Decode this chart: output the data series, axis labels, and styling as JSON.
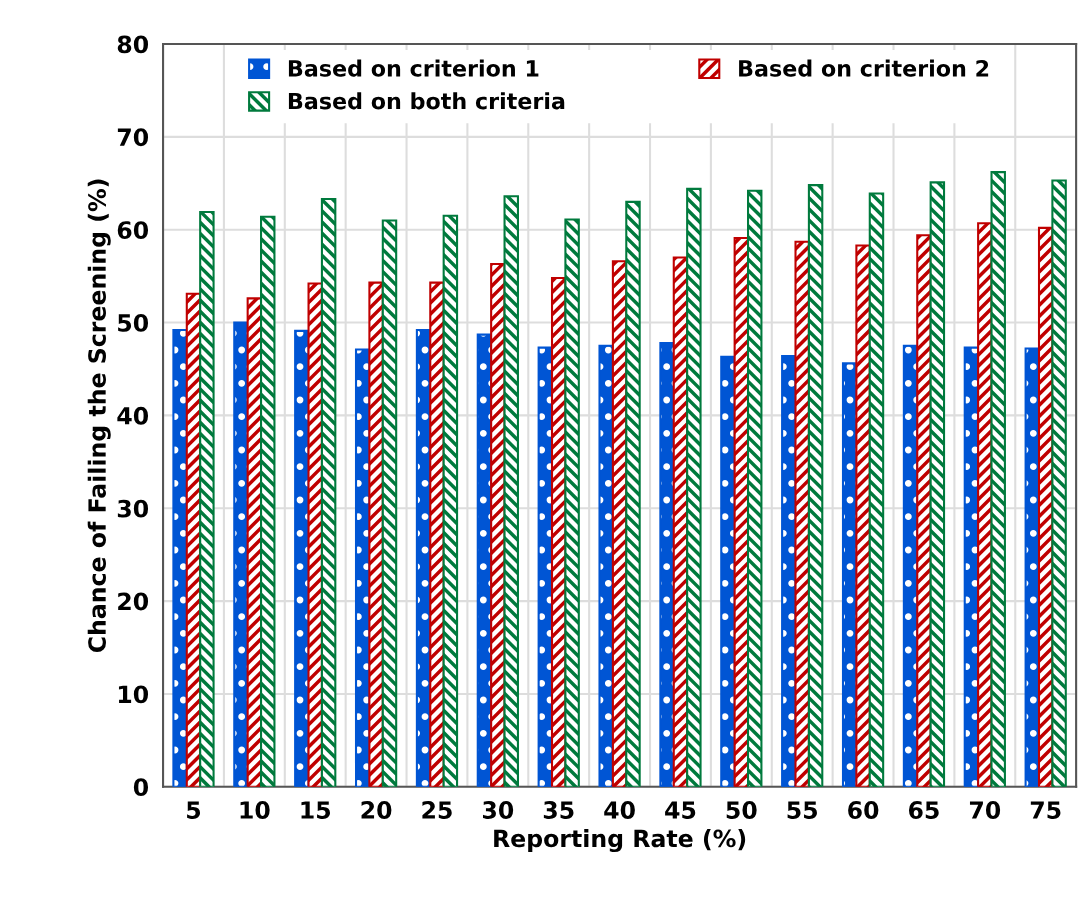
{
  "chart_data": {
    "type": "bar",
    "xlabel": "Reporting Rate (%)",
    "ylabel": "Chance of Failing the Screening (%)",
    "categories": [
      "5",
      "10",
      "15",
      "20",
      "25",
      "30",
      "35",
      "40",
      "45",
      "50",
      "55",
      "60",
      "65",
      "70",
      "75"
    ],
    "series": [
      {
        "name": "Based on criterion 1",
        "color": "#0055d4",
        "values": [
          49.2,
          50.0,
          49.1,
          47.1,
          49.2,
          48.7,
          47.3,
          47.5,
          47.8,
          46.3,
          46.4,
          45.6,
          47.5,
          47.3,
          47.2
        ]
      },
      {
        "name": "Based on criterion 2",
        "color": "#c00000",
        "values": [
          53.1,
          52.6,
          54.2,
          54.3,
          54.3,
          56.3,
          54.8,
          56.6,
          57.0,
          59.1,
          58.7,
          58.3,
          59.4,
          60.7,
          60.2
        ]
      },
      {
        "name": "Based on both criteria",
        "color": "#007a3d",
        "values": [
          61.9,
          61.4,
          63.3,
          61.0,
          61.5,
          63.6,
          61.1,
          63.0,
          64.4,
          64.2,
          64.8,
          63.9,
          65.1,
          66.2,
          65.3
        ]
      }
    ],
    "ylim": [
      0,
      80
    ],
    "yticks": [
      0,
      10,
      20,
      30,
      40,
      50,
      60,
      70,
      80
    ],
    "grid": true,
    "legend": "top"
  }
}
